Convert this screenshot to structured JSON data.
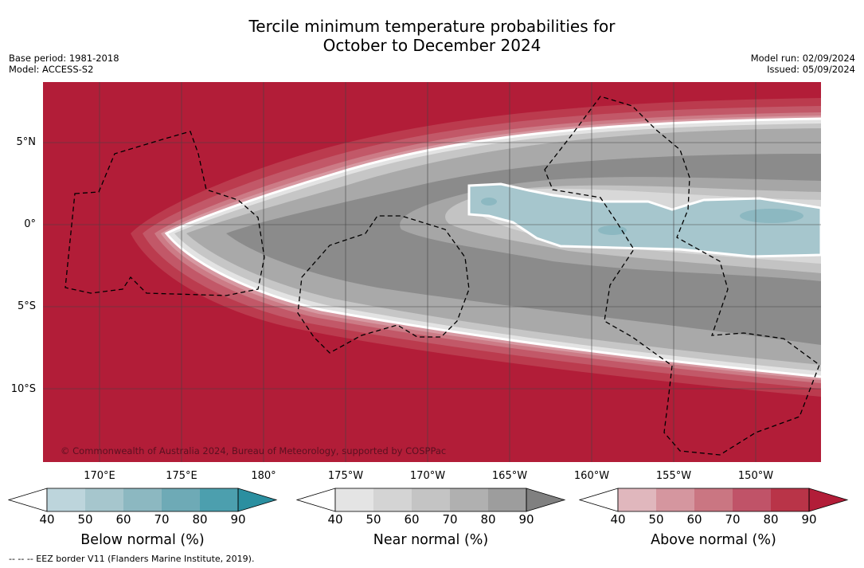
{
  "title": {
    "line1": "Tercile minimum temperature probabilities for",
    "line2": "October to December 2024"
  },
  "info_left": {
    "base_period": "Base period: 1981-2018",
    "model": "Model: ACCESS-S2"
  },
  "info_right": {
    "model_run": "Model run: 02/09/2024",
    "issued": "Issued: 05/09/2024"
  },
  "map": {
    "copyright": "© Commonwealth of Australia 2024, Bureau of Meteorology, supported by COSPPac",
    "lat_labels": [
      "5°N",
      "0°",
      "5°S",
      "10°S"
    ],
    "lon_labels": [
      "170°E",
      "175°E",
      "180°",
      "175°W",
      "170°W",
      "165°W",
      "160°W",
      "155°W",
      "150°W"
    ],
    "colors": {
      "above_normal": "#b21d38",
      "grid": "#444444"
    }
  },
  "colorbars": [
    {
      "title": "Below normal (%)",
      "ticks": [
        "40",
        "50",
        "60",
        "70",
        "80",
        "90"
      ],
      "colors": [
        "#ffffff",
        "#bdd5dc",
        "#a6c6cd",
        "#8cb8c1",
        "#6eaab6",
        "#4c9fae",
        "#2b8fa0"
      ]
    },
    {
      "title": "Near normal (%)",
      "ticks": [
        "40",
        "50",
        "60",
        "70",
        "80",
        "90"
      ],
      "colors": [
        "#ffffff",
        "#e4e4e4",
        "#d4d4d4",
        "#c4c4c4",
        "#b0b0b0",
        "#9d9d9d",
        "#808080"
      ]
    },
    {
      "title": "Above normal (%)",
      "ticks": [
        "40",
        "50",
        "60",
        "70",
        "80",
        "90"
      ],
      "colors": [
        "#ffffff",
        "#e0b7bd",
        "#d5969f",
        "#ca7682",
        "#c05368",
        "#b93448",
        "#b21d38"
      ]
    }
  ],
  "legend_note": "--  --  -- EEZ border V11 (Flanders Marine Institute, 2019)."
}
